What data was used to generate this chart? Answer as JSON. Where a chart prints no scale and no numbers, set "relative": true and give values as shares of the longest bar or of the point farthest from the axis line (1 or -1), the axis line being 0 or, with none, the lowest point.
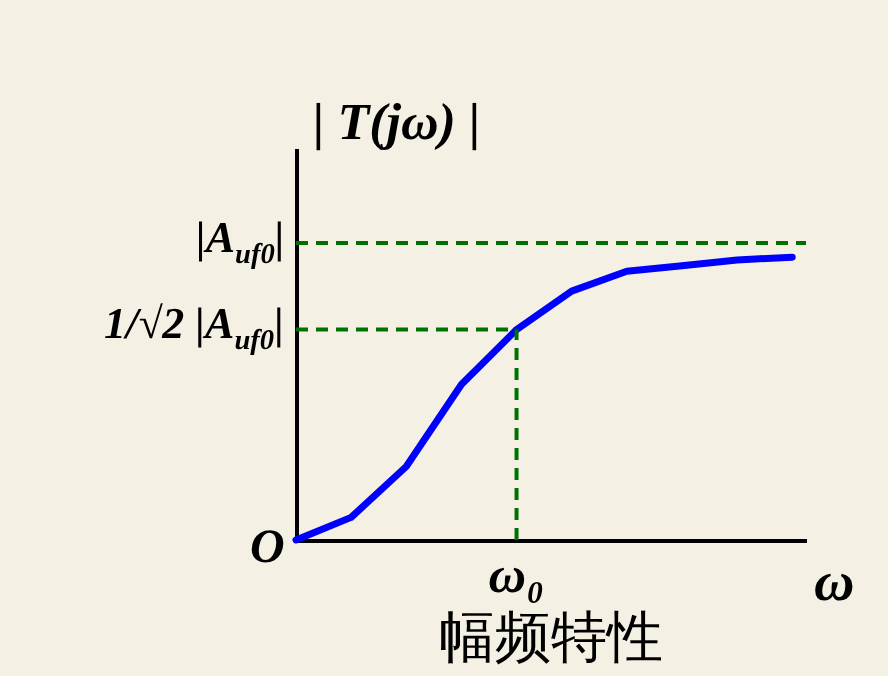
{
  "chart_data": {
    "type": "line",
    "title": "幅频特性",
    "xlabel": "ω",
    "ylabel": "| T(jω) |",
    "relative": true,
    "categories": [
      null,
      null,
      null,
      null,
      null,
      null,
      null,
      null,
      null,
      null
    ],
    "series": [
      {
        "color": "#0000ff",
        "values": [
          0,
          0.08,
          0.26,
          0.55,
          0.744,
          0.88,
          0.95,
          0.97,
          0.99,
          1
        ]
      }
    ],
    "ref_lines": [
      {
        "axis": "y",
        "value": 1.05,
        "label": "|A$_{uf0}$|",
        "color": "#007000",
        "line_style": "dashed"
      },
      {
        "axis": "y",
        "value": 0.744,
        "label": "1/√2 |A$_{uf0}$|",
        "color": "#007000",
        "line_style": "dashed"
      }
    ],
    "annotations": [
      "O",
      "ω₀"
    ],
    "grid": false,
    "marker": "none",
    "line_style": "solid"
  }
}
